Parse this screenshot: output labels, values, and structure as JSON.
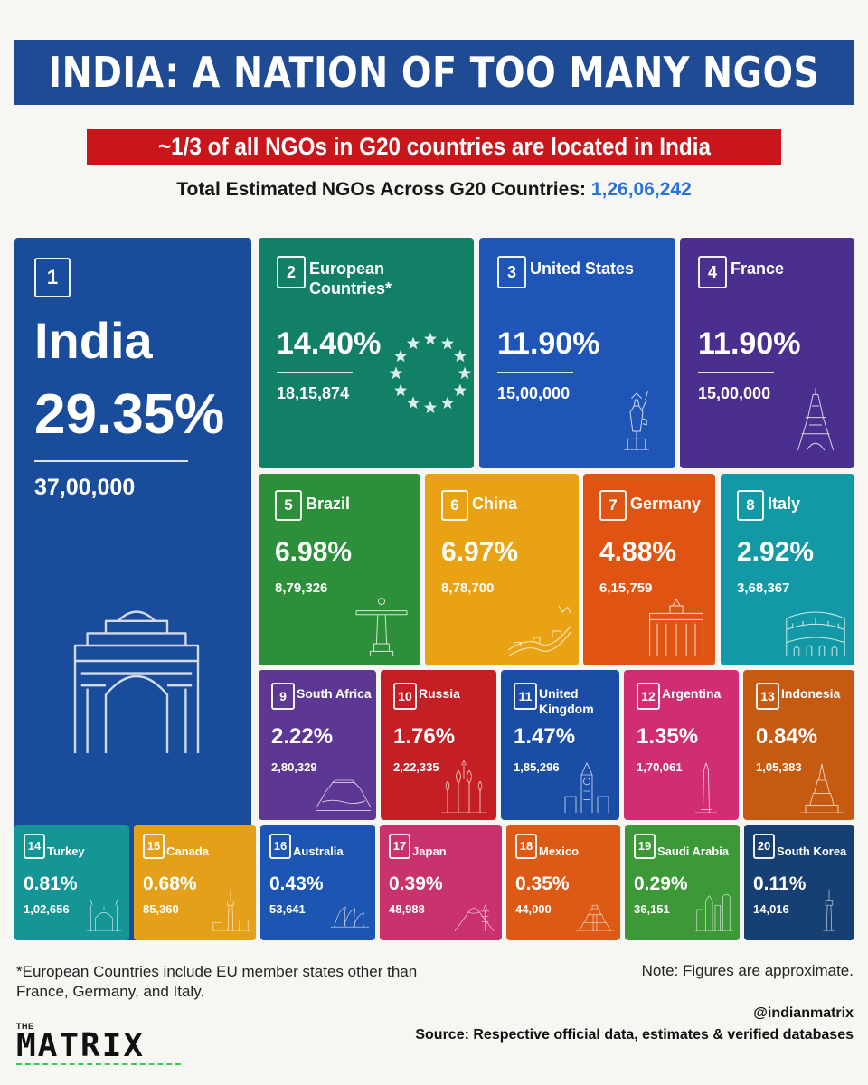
{
  "header": {
    "title": "INDIA: A NATION OF TOO MANY NGOS",
    "subtitle": "~1/3 of all NGOs in G20 countries are located in India",
    "total_label": "Total Estimated NGOs Across G20 Countries:",
    "total_value": "1,26,06,242"
  },
  "colors": {
    "title_bg": "#1f4a94",
    "subtitle_bg": "#c8161b",
    "total_value": "#2a73d9"
  },
  "chart_data": {
    "type": "treemap",
    "title": "INDIA: A NATION OF TOO MANY NGOS",
    "total": 12606242,
    "items": [
      {
        "rank": "1",
        "name": "India",
        "share": "29.35%",
        "count": "37,00,000",
        "value": 3700000,
        "color": "#1a4c9c",
        "icon": "india-gate-icon"
      },
      {
        "rank": "2",
        "name": "European\nCountries*",
        "share": "14.40%",
        "count": "18,15,874",
        "value": 1815874,
        "color": "#118067",
        "icon": "eu-stars-icon"
      },
      {
        "rank": "3",
        "name": "United States",
        "share": "11.90%",
        "count": "15,00,000",
        "value": 1500000,
        "color": "#1e55b6",
        "icon": "statue-of-liberty-icon"
      },
      {
        "rank": "4",
        "name": "France",
        "share": "11.90%",
        "count": "15,00,000",
        "value": 1500000,
        "color": "#4a2f8e",
        "icon": "eiffel-tower-icon"
      },
      {
        "rank": "5",
        "name": "Brazil",
        "share": "6.98%",
        "count": "8,79,326",
        "value": 879326,
        "color": "#2e8f3a",
        "icon": "christ-redeemer-icon"
      },
      {
        "rank": "6",
        "name": "China",
        "share": "6.97%",
        "count": "8,78,700",
        "value": 878700,
        "color": "#e8a214",
        "icon": "great-wall-icon"
      },
      {
        "rank": "7",
        "name": "Germany",
        "share": "4.88%",
        "count": "6,15,759",
        "value": 615759,
        "color": "#df5412",
        "icon": "brandenburg-gate-icon"
      },
      {
        "rank": "8",
        "name": "Italy",
        "share": "2.92%",
        "count": "3,68,367",
        "value": 368367,
        "color": "#1399a5",
        "icon": "colosseum-icon"
      },
      {
        "rank": "9",
        "name": "South Africa",
        "share": "2.22%",
        "count": "2,80,329",
        "value": 280329,
        "color": "#5c3794",
        "icon": "table-mountain-icon"
      },
      {
        "rank": "10",
        "name": "Russia",
        "share": "1.76%",
        "count": "2,22,335",
        "value": 222335,
        "color": "#c41f24",
        "icon": "st-basils-icon"
      },
      {
        "rank": "11",
        "name": "United Kingdom",
        "share": "1.47%",
        "count": "1,85,296",
        "value": 185296,
        "color": "#1a4ea6",
        "icon": "big-ben-icon"
      },
      {
        "rank": "12",
        "name": "Argentina",
        "share": "1.35%",
        "count": "1,70,061",
        "value": 170061,
        "color": "#d02d73",
        "icon": "obelisk-icon"
      },
      {
        "rank": "13",
        "name": "Indonesia",
        "share": "0.84%",
        "count": "1,05,383",
        "value": 105383,
        "color": "#c65a11",
        "icon": "temple-icon"
      },
      {
        "rank": "14",
        "name": "Turkey",
        "share": "0.81%",
        "count": "1,02,656",
        "value": 102656,
        "color": "#159595",
        "icon": "mosque-icon"
      },
      {
        "rank": "15",
        "name": "Canada",
        "share": "0.68%",
        "count": "85,360",
        "value": 85360,
        "color": "#e5a01a",
        "icon": "cn-tower-icon"
      },
      {
        "rank": "16",
        "name": "Australia",
        "share": "0.43%",
        "count": "53,641",
        "value": 53641,
        "color": "#1d55b2",
        "icon": "opera-house-icon"
      },
      {
        "rank": "17",
        "name": "Japan",
        "share": "0.39%",
        "count": "48,988",
        "value": 48988,
        "color": "#c8336d",
        "icon": "mount-fuji-pagoda-icon"
      },
      {
        "rank": "18",
        "name": "Mexico",
        "share": "0.35%",
        "count": "44,000",
        "value": 44000,
        "color": "#dc5a15",
        "icon": "pyramid-icon"
      },
      {
        "rank": "19",
        "name": "Saudi Arabia",
        "share": "0.29%",
        "count": "36,151",
        "value": 36151,
        "color": "#3d9838",
        "icon": "skyline-icon"
      },
      {
        "rank": "20",
        "name": "South Korea",
        "share": "0.11%",
        "count": "14,016",
        "value": 14016,
        "color": "#163f74",
        "icon": "namsan-tower-icon"
      }
    ]
  },
  "footer": {
    "footnote": "*European Countries include EU member states other than France, Germany, and Italy.",
    "note": "Note: Figures are approximate.",
    "handle": "@indianmatrix",
    "source": "Source: Respective official data, estimates & verified databases",
    "logo_top": "THE",
    "logo_word": "MATRIX"
  }
}
